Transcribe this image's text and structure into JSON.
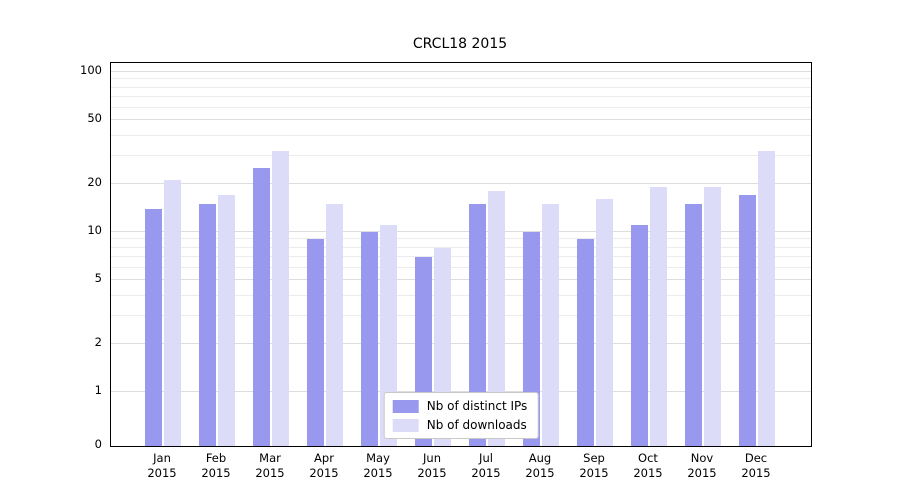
{
  "chart_data": {
    "type": "bar",
    "title": "CRCL18 2015",
    "yscale": "symlog",
    "ylim": [
      0,
      100
    ],
    "yticks": [
      0,
      1,
      2,
      5,
      10,
      20,
      50,
      100
    ],
    "minor_yticks": [
      3,
      4,
      6,
      7,
      8,
      9,
      30,
      40,
      60,
      70,
      80,
      90
    ],
    "grid": true,
    "legend_position": "lower center",
    "categories": [
      "Jan 2015",
      "Feb 2015",
      "Mar 2015",
      "Apr 2015",
      "May 2015",
      "Jun 2015",
      "Jul 2015",
      "Aug 2015",
      "Sep 2015",
      "Oct 2015",
      "Nov 2015",
      "Dec 2015"
    ],
    "series": [
      {
        "name": "Nb of distinct IPs",
        "color": "#9898ef",
        "values": [
          14,
          15,
          25,
          9,
          10,
          7,
          15,
          10,
          9,
          11,
          15,
          17
        ]
      },
      {
        "name": "Nb of downloads",
        "color": "#dcdbf8",
        "values": [
          21,
          17,
          32,
          15,
          11,
          8,
          18,
          15,
          16,
          19,
          19,
          32
        ]
      }
    ]
  }
}
